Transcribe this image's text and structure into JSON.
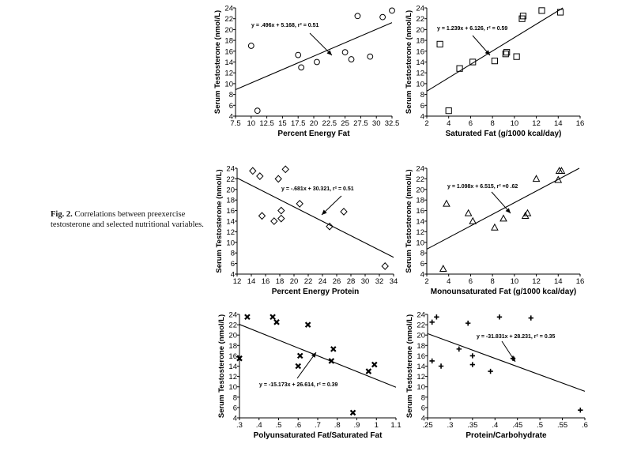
{
  "caption": {
    "label": "Fig. 2.",
    "text": "Correlations between preexercise testosterone and selected nutritional variables."
  },
  "chart_data": [
    {
      "type": "scatter",
      "id": "energy-fat",
      "marker": "circle",
      "xlabel": "Percent Energy Fat",
      "ylabel": "Serum Testosterone (nmol/L)",
      "equation": "y = .496x + 5.168, r² = 0.51",
      "xlim": [
        7.5,
        32.5
      ],
      "ylim": [
        4,
        24
      ],
      "x_ticks": [
        "7.5",
        "10",
        "12.5",
        "15",
        "17.5",
        "20",
        "22.5",
        "25",
        "27.5",
        "30",
        "32.5"
      ],
      "y_ticks": [
        "4",
        "6",
        "8",
        "10",
        "12",
        "14",
        "16",
        "18",
        "20",
        "22",
        "24"
      ],
      "fit": {
        "slope": 0.496,
        "intercept": 5.168
      },
      "x": [
        10,
        11,
        17.5,
        18,
        20.5,
        25,
        26,
        27,
        29,
        31,
        32.5
      ],
      "y": [
        17,
        5,
        15.3,
        13,
        14,
        15.8,
        14.5,
        22.5,
        15,
        22.3,
        23.5
      ]
    },
    {
      "type": "scatter",
      "id": "saturated-fat",
      "marker": "square",
      "xlabel": "Saturated Fat (g/1000 kcal/day)",
      "ylabel": "Serum Testosterone (nmol/L)",
      "equation": "y = 1.239x + 6.126, r² = 0.59",
      "xlim": [
        2,
        16
      ],
      "ylim": [
        4,
        24
      ],
      "x_ticks": [
        "2",
        "4",
        "6",
        "8",
        "10",
        "12",
        "14",
        "16"
      ],
      "y_ticks": [
        "4",
        "6",
        "8",
        "10",
        "12",
        "14",
        "16",
        "18",
        "20",
        "22",
        "24"
      ],
      "fit": {
        "slope": 1.239,
        "intercept": 6.126
      },
      "x": [
        3.2,
        4,
        5,
        6.2,
        8.2,
        9.2,
        9.3,
        10.2,
        10.7,
        10.8,
        12.5,
        14.2
      ],
      "y": [
        17.3,
        5,
        12.8,
        14,
        14.2,
        15.5,
        15.8,
        15,
        22,
        22.5,
        23.5,
        23.2
      ]
    },
    {
      "type": "scatter",
      "id": "energy-protein",
      "marker": "diamond",
      "xlabel": "Percent Energy Protein",
      "ylabel": "Serum Testosterone (nmol/L)",
      "equation": "y = -.681x + 30.321, r² = 0.51",
      "xlim": [
        12,
        34
      ],
      "ylim": [
        4,
        24
      ],
      "x_ticks": [
        "12",
        "14",
        "16",
        "18",
        "20",
        "22",
        "24",
        "26",
        "28",
        "30",
        "32",
        "34"
      ],
      "y_ticks": [
        "4",
        "6",
        "8",
        "10",
        "12",
        "14",
        "16",
        "18",
        "20",
        "22",
        "24"
      ],
      "fit": {
        "slope": -0.681,
        "intercept": 30.321
      },
      "x": [
        14.2,
        15.2,
        15.5,
        17.2,
        17.8,
        18.2,
        18.2,
        18.8,
        20.8,
        25,
        27,
        32.8
      ],
      "y": [
        23.5,
        22.5,
        15,
        14,
        22,
        14.5,
        16,
        23.8,
        17.3,
        13,
        15.8,
        5.5
      ]
    },
    {
      "type": "scatter",
      "id": "monounsaturated-fat",
      "marker": "triangle",
      "xlabel": "Monounsaturated Fat (g/1000 kcal/day)",
      "ylabel": "Serum Testosterone (nmol/L)",
      "equation": "y = 1.098x + 6.515, r² =0 .62",
      "xlim": [
        2,
        16
      ],
      "ylim": [
        4,
        24
      ],
      "x_ticks": [
        "2",
        "4",
        "6",
        "8",
        "10",
        "12",
        "14",
        "16"
      ],
      "y_ticks": [
        "4",
        "6",
        "8",
        "10",
        "12",
        "14",
        "16",
        "18",
        "20",
        "22",
        "24"
      ],
      "fit": {
        "slope": 1.098,
        "intercept": 6.515
      },
      "x": [
        3.5,
        3.8,
        5.8,
        6.2,
        8.2,
        9,
        11,
        11.2,
        12,
        14,
        14.1,
        14.3
      ],
      "y": [
        5,
        17.3,
        15.5,
        14,
        12.8,
        14.5,
        15,
        15.5,
        22,
        21.8,
        23.5,
        23.5
      ]
    },
    {
      "type": "scatter",
      "id": "poly-saturated",
      "marker": "x",
      "xlabel": "Polyunsaturated Fat/Saturated Fat",
      "ylabel": "Serum Testosterone (nmol/L)",
      "equation": "y = -15.173x + 26.614, r² = 0.39",
      "xlim": [
        0.3,
        1.1
      ],
      "ylim": [
        4,
        24
      ],
      "x_ticks": [
        ".3",
        ".4",
        ".5",
        ".6",
        ".7",
        ".8",
        ".9",
        "1",
        "1.1"
      ],
      "y_ticks": [
        "4",
        "6",
        "8",
        "10",
        "12",
        "14",
        "16",
        "18",
        "20",
        "22",
        "24"
      ],
      "fit": {
        "slope": -15.173,
        "intercept": 26.614
      },
      "x": [
        0.3,
        0.34,
        0.47,
        0.49,
        0.6,
        0.61,
        0.65,
        0.77,
        0.78,
        0.88,
        0.96,
        0.99
      ],
      "y": [
        15.5,
        23.5,
        23.5,
        22.5,
        14,
        16,
        22,
        15,
        17.3,
        5,
        13,
        14.3
      ]
    },
    {
      "type": "scatter",
      "id": "protein-carbohydrate",
      "marker": "plus",
      "xlabel": "Protein/Carbohydrate",
      "ylabel": "Serum Testosterone (nmol/L)",
      "equation": "y = -31.831x + 28.231, r² = 0.35",
      "xlim": [
        0.25,
        0.6
      ],
      "ylim": [
        4,
        24
      ],
      "x_ticks": [
        ".25",
        ".3",
        ".35",
        ".4",
        ".45",
        ".5",
        ".55",
        ".6"
      ],
      "y_ticks": [
        "4",
        "6",
        "8",
        "10",
        "12",
        "14",
        "16",
        "18",
        "20",
        "22",
        "24"
      ],
      "fit": {
        "slope": -31.831,
        "intercept": 28.231
      },
      "x": [
        0.26,
        0.26,
        0.27,
        0.28,
        0.32,
        0.34,
        0.35,
        0.35,
        0.39,
        0.41,
        0.44,
        0.48,
        0.59
      ],
      "y": [
        22.5,
        15,
        23.5,
        14,
        17.3,
        22.3,
        16,
        14.3,
        13,
        23.5,
        15.5,
        23.3,
        5.5
      ]
    }
  ]
}
